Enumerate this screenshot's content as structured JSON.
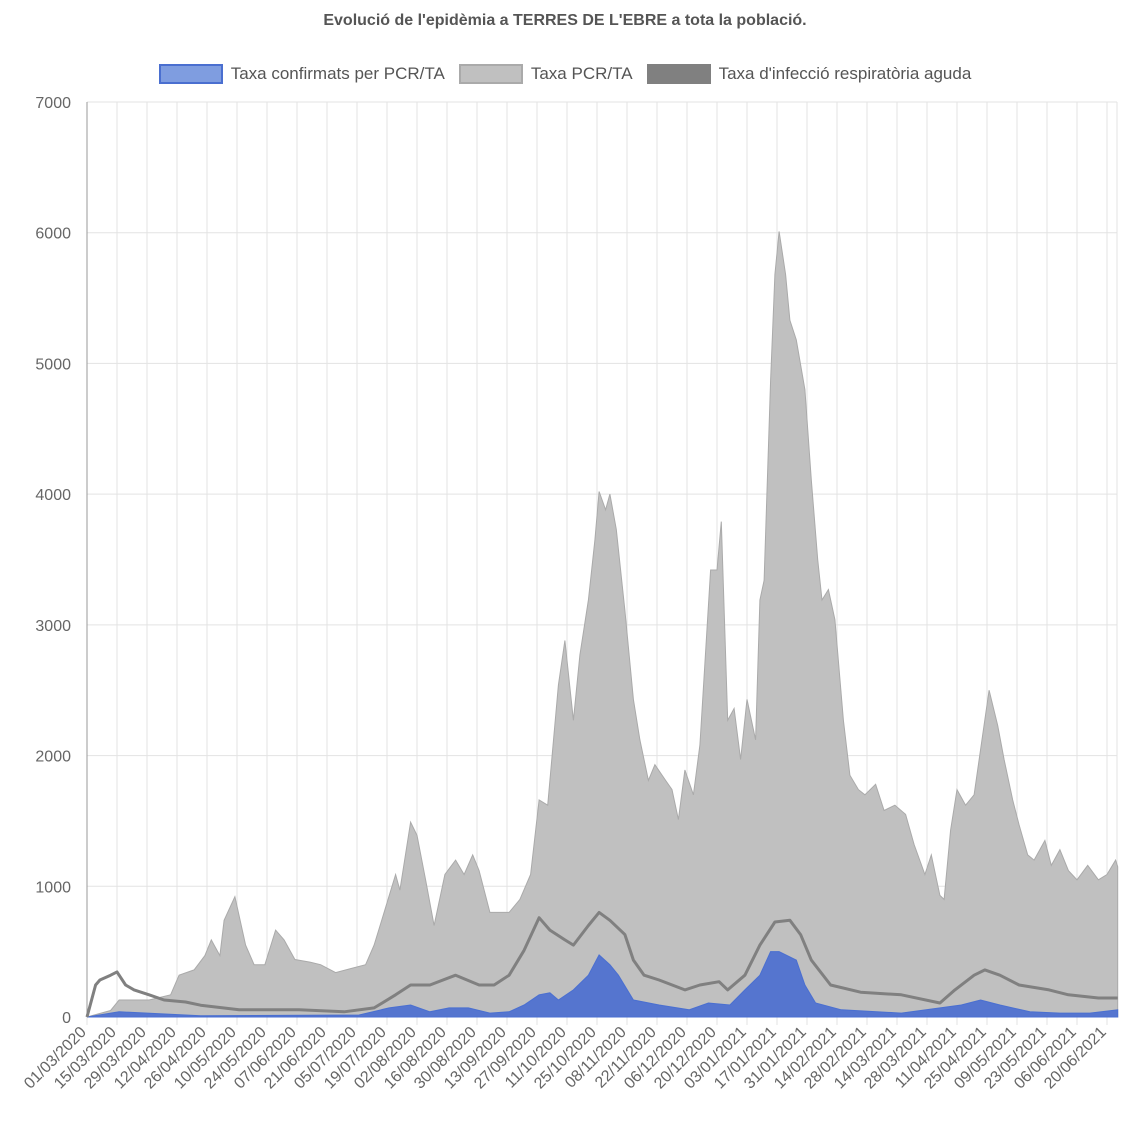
{
  "chart_data": {
    "type": "area",
    "title": "Evolució de l'epidèmia a TERRES DE L'EBRE a tota la població.",
    "xlabel": "",
    "ylabel": "",
    "x_unit": "days since 01/03/2020",
    "ylim": [
      0,
      7000
    ],
    "y_ticks": [
      "0",
      "1000",
      "2000",
      "3000",
      "4000",
      "5000",
      "6000",
      "7000"
    ],
    "x_ticks": [
      "01/03/2020",
      "15/03/2020",
      "29/03/2020",
      "12/04/2020",
      "26/04/2020",
      "10/05/2020",
      "24/05/2020",
      "07/06/2020",
      "21/06/2020",
      "05/07/2020",
      "19/07/2020",
      "02/08/2020",
      "16/08/2020",
      "30/08/2020",
      "13/09/2020",
      "27/09/2020",
      "11/10/2020",
      "25/10/2020",
      "08/11/2020",
      "22/11/2020",
      "06/12/2020",
      "20/12/2020",
      "03/01/2021",
      "17/01/2021",
      "31/01/2021",
      "14/02/2021",
      "28/02/2021",
      "14/03/2021",
      "28/03/2021",
      "11/04/2021",
      "25/04/2021",
      "09/05/2021",
      "23/05/2021",
      "06/06/2021",
      "20/06/2021"
    ],
    "x_tick_step_days": 14,
    "grid": true,
    "legend_position": "top",
    "series": [
      {
        "name": "Taxa confirmats per PCR/TA",
        "color": "#5575cf",
        "legend_color": "#7f9de0",
        "points": [
          [
            0,
            0
          ],
          [
            15,
            40
          ],
          [
            53,
            10
          ],
          [
            127,
            15
          ],
          [
            141,
            70
          ],
          [
            151,
            92
          ],
          [
            160,
            40
          ],
          [
            169,
            70
          ],
          [
            178,
            70
          ],
          [
            188,
            30
          ],
          [
            197,
            40
          ],
          [
            204,
            92
          ],
          [
            211,
            170
          ],
          [
            216,
            185
          ],
          [
            220,
            130
          ],
          [
            227,
            207
          ],
          [
            234,
            320
          ],
          [
            239,
            475
          ],
          [
            244,
            400
          ],
          [
            248,
            320
          ],
          [
            255,
            130
          ],
          [
            267,
            92
          ],
          [
            281,
            55
          ],
          [
            290,
            107
          ],
          [
            300,
            92
          ],
          [
            307,
            207
          ],
          [
            314,
            320
          ],
          [
            319,
            500
          ],
          [
            323,
            500
          ],
          [
            331,
            435
          ],
          [
            335,
            245
          ],
          [
            340,
            107
          ],
          [
            352,
            55
          ],
          [
            380,
            30
          ],
          [
            408,
            92
          ],
          [
            417,
            130
          ],
          [
            426,
            92
          ],
          [
            440,
            40
          ],
          [
            454,
            30
          ],
          [
            468,
            30
          ],
          [
            481,
            55
          ]
        ]
      },
      {
        "name": "Taxa PCR/TA",
        "color": "#c0c0c0",
        "legend_color": "#c0c0c0",
        "points": [
          [
            0,
            0
          ],
          [
            11,
            50
          ],
          [
            15,
            130
          ],
          [
            29,
            130
          ],
          [
            39,
            170
          ],
          [
            43,
            320
          ],
          [
            50,
            360
          ],
          [
            55,
            470
          ],
          [
            58,
            590
          ],
          [
            62,
            470
          ],
          [
            64,
            740
          ],
          [
            69,
            920
          ],
          [
            74,
            550
          ],
          [
            78,
            400
          ],
          [
            83,
            400
          ],
          [
            88,
            665
          ],
          [
            92,
            590
          ],
          [
            97,
            440
          ],
          [
            104,
            420
          ],
          [
            109,
            400
          ],
          [
            116,
            340
          ],
          [
            123,
            370
          ],
          [
            130,
            400
          ],
          [
            134,
            550
          ],
          [
            139,
            820
          ],
          [
            144,
            1090
          ],
          [
            146,
            970
          ],
          [
            151,
            1490
          ],
          [
            154,
            1390
          ],
          [
            158,
            1050
          ],
          [
            162,
            700
          ],
          [
            167,
            1090
          ],
          [
            172,
            1200
          ],
          [
            176,
            1090
          ],
          [
            180,
            1240
          ],
          [
            183,
            1120
          ],
          [
            188,
            800
          ],
          [
            193,
            800
          ],
          [
            197,
            800
          ],
          [
            202,
            900
          ],
          [
            207,
            1090
          ],
          [
            211,
            1660
          ],
          [
            215,
            1620
          ],
          [
            220,
            2540
          ],
          [
            223,
            2880
          ],
          [
            227,
            2270
          ],
          [
            230,
            2770
          ],
          [
            234,
            3190
          ],
          [
            237,
            3650
          ],
          [
            239,
            4020
          ],
          [
            242,
            3880
          ],
          [
            244,
            4000
          ],
          [
            247,
            3730
          ],
          [
            251,
            3110
          ],
          [
            255,
            2430
          ],
          [
            258,
            2120
          ],
          [
            262,
            1810
          ],
          [
            265,
            1930
          ],
          [
            270,
            1810
          ],
          [
            273,
            1740
          ],
          [
            276,
            1510
          ],
          [
            279,
            1890
          ],
          [
            283,
            1700
          ],
          [
            286,
            2080
          ],
          [
            291,
            3420
          ],
          [
            294,
            3420
          ],
          [
            296,
            3790
          ],
          [
            299,
            2270
          ],
          [
            302,
            2360
          ],
          [
            305,
            1970
          ],
          [
            308,
            2430
          ],
          [
            312,
            2120
          ],
          [
            314,
            3190
          ],
          [
            316,
            3340
          ],
          [
            319,
            4870
          ],
          [
            321,
            5680
          ],
          [
            323,
            6010
          ],
          [
            326,
            5680
          ],
          [
            328,
            5330
          ],
          [
            331,
            5180
          ],
          [
            335,
            4800
          ],
          [
            338,
            4110
          ],
          [
            341,
            3500
          ],
          [
            343,
            3190
          ],
          [
            346,
            3270
          ],
          [
            349,
            3040
          ],
          [
            353,
            2270
          ],
          [
            356,
            1850
          ],
          [
            360,
            1740
          ],
          [
            363,
            1700
          ],
          [
            368,
            1780
          ],
          [
            372,
            1580
          ],
          [
            377,
            1620
          ],
          [
            382,
            1550
          ],
          [
            386,
            1320
          ],
          [
            391,
            1090
          ],
          [
            394,
            1240
          ],
          [
            398,
            930
          ],
          [
            400,
            900
          ],
          [
            403,
            1430
          ],
          [
            406,
            1740
          ],
          [
            410,
            1620
          ],
          [
            414,
            1700
          ],
          [
            418,
            2160
          ],
          [
            421,
            2500
          ],
          [
            425,
            2230
          ],
          [
            428,
            1970
          ],
          [
            432,
            1660
          ],
          [
            435,
            1470
          ],
          [
            439,
            1240
          ],
          [
            442,
            1200
          ],
          [
            447,
            1350
          ],
          [
            450,
            1160
          ],
          [
            454,
            1280
          ],
          [
            458,
            1120
          ],
          [
            462,
            1050
          ],
          [
            467,
            1160
          ],
          [
            472,
            1050
          ],
          [
            476,
            1090
          ],
          [
            480,
            1200
          ],
          [
            481,
            1150
          ]
        ]
      },
      {
        "name": "Taxa d'infecció respiratòria aguda",
        "color": "#808080",
        "legend_color": "#808080",
        "points": [
          [
            0,
            0
          ],
          [
            4,
            245
          ],
          [
            6,
            283
          ],
          [
            11,
            320
          ],
          [
            14,
            345
          ],
          [
            18,
            245
          ],
          [
            22,
            207
          ],
          [
            29,
            170
          ],
          [
            36,
            130
          ],
          [
            46,
            115
          ],
          [
            53,
            90
          ],
          [
            71,
            55
          ],
          [
            99,
            55
          ],
          [
            120,
            40
          ],
          [
            134,
            70
          ],
          [
            144,
            170
          ],
          [
            151,
            245
          ],
          [
            160,
            245
          ],
          [
            172,
            320
          ],
          [
            183,
            245
          ],
          [
            190,
            245
          ],
          [
            197,
            320
          ],
          [
            204,
            510
          ],
          [
            211,
            760
          ],
          [
            216,
            665
          ],
          [
            223,
            590
          ],
          [
            227,
            550
          ],
          [
            234,
            700
          ],
          [
            239,
            800
          ],
          [
            244,
            740
          ],
          [
            251,
            630
          ],
          [
            255,
            435
          ],
          [
            260,
            320
          ],
          [
            267,
            283
          ],
          [
            279,
            207
          ],
          [
            286,
            245
          ],
          [
            295,
            270
          ],
          [
            299,
            207
          ],
          [
            307,
            320
          ],
          [
            314,
            550
          ],
          [
            321,
            727
          ],
          [
            328,
            740
          ],
          [
            333,
            630
          ],
          [
            338,
            435
          ],
          [
            347,
            245
          ],
          [
            361,
            190
          ],
          [
            380,
            170
          ],
          [
            398,
            107
          ],
          [
            405,
            207
          ],
          [
            414,
            320
          ],
          [
            419,
            360
          ],
          [
            426,
            320
          ],
          [
            435,
            245
          ],
          [
            449,
            207
          ],
          [
            458,
            170
          ],
          [
            472,
            145
          ],
          [
            481,
            145
          ]
        ]
      }
    ]
  }
}
